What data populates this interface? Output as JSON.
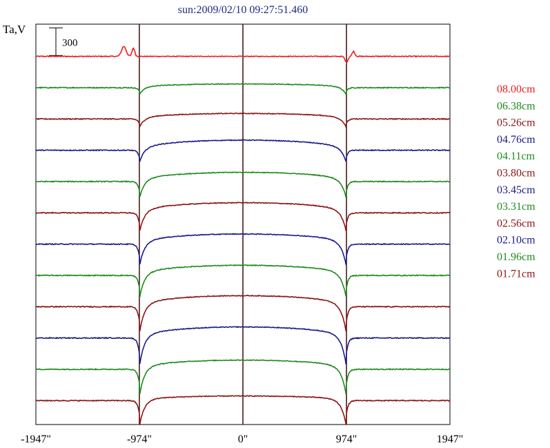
{
  "chart_data": {
    "type": "line",
    "title": "sun:2009/02/10 09:27:51.460",
    "ylabel": "Ta,V",
    "xlabel": "",
    "x_ticks": [
      "-1947\"",
      "-974\"",
      "0\"",
      "974\"",
      "1947\""
    ],
    "x_tick_values": [
      -1947,
      -974,
      0,
      974,
      1947
    ],
    "xlim": [
      -1947,
      1947
    ],
    "vertical_lines_at": [
      -974,
      0,
      974
    ],
    "scale_bar": {
      "label": "300",
      "value": 300
    },
    "grid": false,
    "legend_position": "right",
    "ylim": [
      0,
      4350
    ],
    "series": [
      {
        "name": "08.00cm",
        "color": "#ee1c1c",
        "offset": 4000,
        "disk_brightness": 0,
        "limb_dip": 0,
        "limb_bump": 180
      },
      {
        "name": "06.38cm",
        "color": "#1e8a1e",
        "offset": 3660,
        "disk_brightness": 40,
        "limb_dip": 80,
        "limb_bump": 0
      },
      {
        "name": "05.26cm",
        "color": "#8b1414",
        "offset": 3320,
        "disk_brightness": 60,
        "limb_dip": 100,
        "limb_bump": 0
      },
      {
        "name": "04.76cm",
        "color": "#1a1a8c",
        "offset": 2980,
        "disk_brightness": 110,
        "limb_dip": 150,
        "limb_bump": 0
      },
      {
        "name": "04.11cm",
        "color": "#1e8a1e",
        "offset": 2640,
        "disk_brightness": 100,
        "limb_dip": 200,
        "limb_bump": 0
      },
      {
        "name": "03.80cm",
        "color": "#8b1414",
        "offset": 2300,
        "disk_brightness": 110,
        "limb_dip": 230,
        "limb_bump": 0
      },
      {
        "name": "03.45cm",
        "color": "#1a1a8c",
        "offset": 1960,
        "disk_brightness": 110,
        "limb_dip": 260,
        "limb_bump": 0
      },
      {
        "name": "03.31cm",
        "color": "#1e8a1e",
        "offset": 1620,
        "disk_brightness": 110,
        "limb_dip": 270,
        "limb_bump": 0
      },
      {
        "name": "02.56cm",
        "color": "#8b1414",
        "offset": 1280,
        "disk_brightness": 120,
        "limb_dip": 310,
        "limb_bump": 0
      },
      {
        "name": "02.10cm",
        "color": "#1a1a8c",
        "offset": 940,
        "disk_brightness": 120,
        "limb_dip": 330,
        "limb_bump": 0
      },
      {
        "name": "01.96cm",
        "color": "#1e8a1e",
        "offset": 600,
        "disk_brightness": 100,
        "limb_dip": 310,
        "limb_bump": 0
      },
      {
        "name": "01.71cm",
        "color": "#8b1414",
        "offset": 260,
        "disk_brightness": 50,
        "limb_dip": 290,
        "limb_bump": 0
      }
    ]
  }
}
